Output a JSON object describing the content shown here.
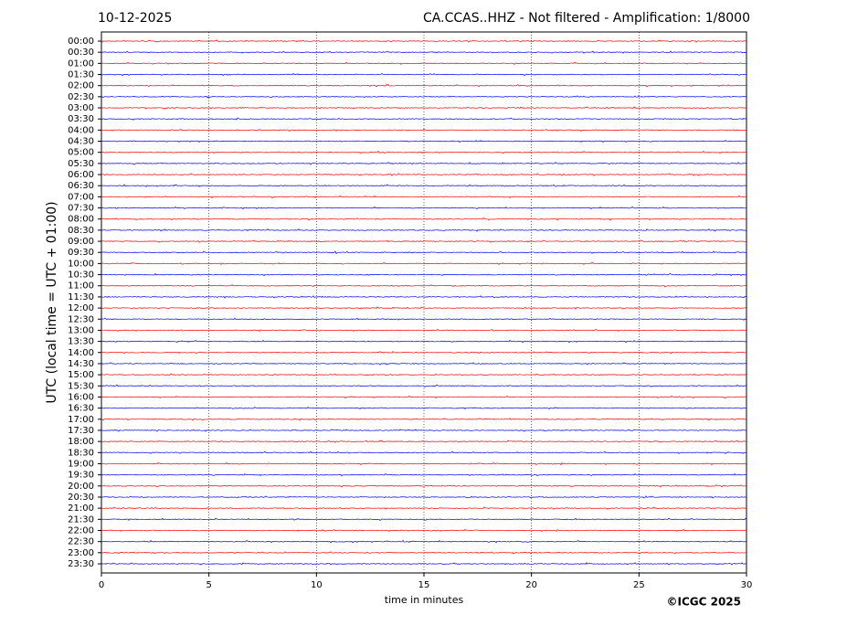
{
  "chart_data": {
    "type": "helicorder",
    "date": "10-12-2025",
    "title": "CA.CCAS..HHZ - Not filtered - Amplification: 1/8000",
    "xlabel": "time in minutes",
    "ylabel": "UTC (local time = UTC + 01:00)",
    "copyright": "©ICGC 2025",
    "categories": [
      "00:00",
      "00:30",
      "01:00",
      "01:30",
      "02:00",
      "02:30",
      "03:00",
      "03:30",
      "04:00",
      "04:30",
      "05:00",
      "05:30",
      "06:00",
      "06:30",
      "07:00",
      "07:30",
      "08:00",
      "08:30",
      "09:00",
      "09:30",
      "10:00",
      "10:30",
      "11:00",
      "11:30",
      "12:00",
      "12:30",
      "13:00",
      "13:30",
      "14:00",
      "14:30",
      "15:00",
      "15:30",
      "16:00",
      "16:30",
      "17:00",
      "17:30",
      "18:00",
      "18:30",
      "19:00",
      "19:30",
      "20:00",
      "20:30",
      "21:00",
      "21:30",
      "22:00",
      "22:30",
      "23:00",
      "23:30"
    ],
    "colors": [
      "#ff0000",
      "#0000ff"
    ],
    "xlim": [
      0,
      30
    ],
    "xticks": [
      0,
      5,
      10,
      15,
      20,
      25,
      30
    ],
    "grid": true
  }
}
